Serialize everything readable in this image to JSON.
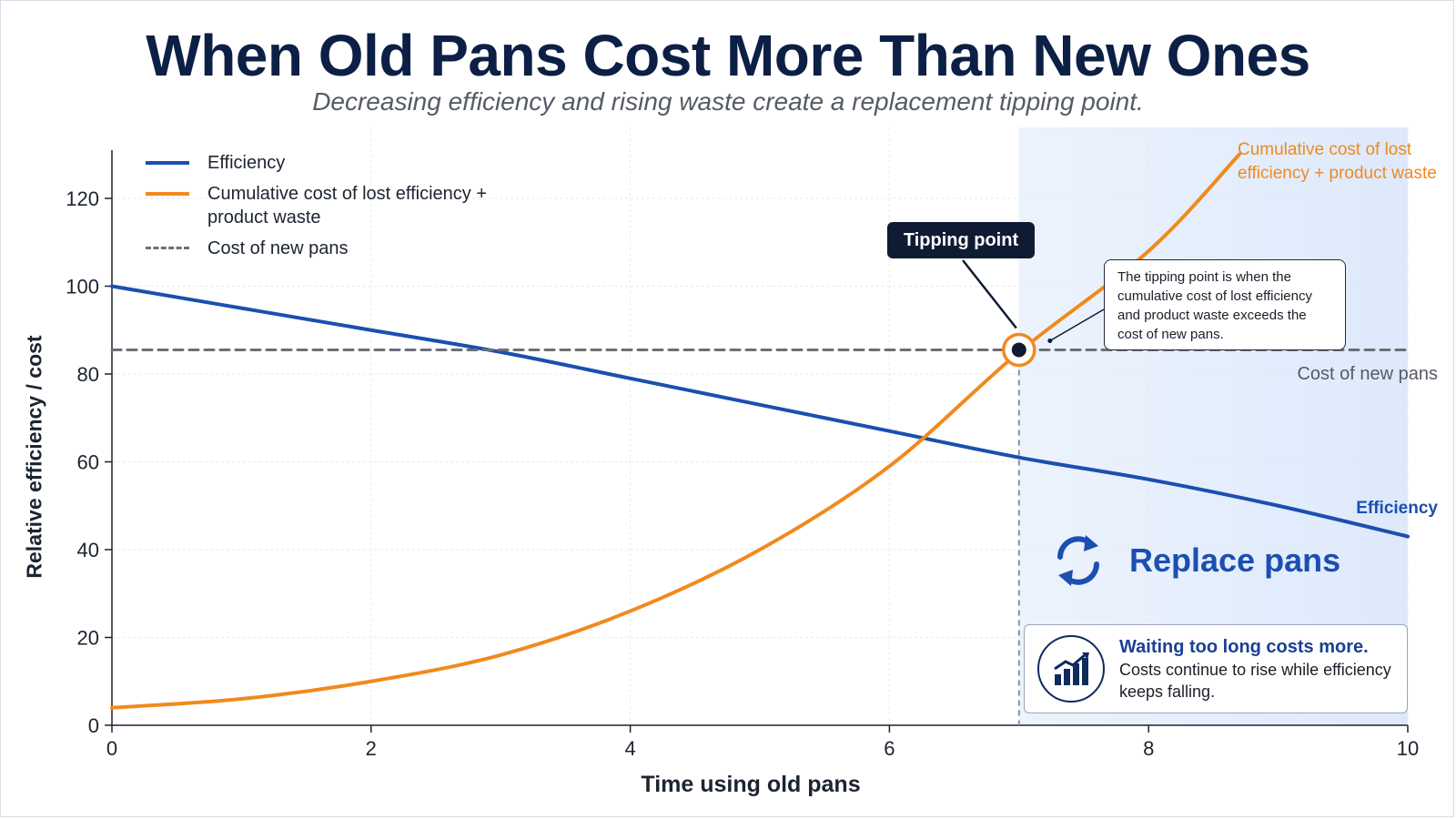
{
  "header": {
    "title": "When Old Pans Cost More Than New Ones",
    "subtitle": "Decreasing efficiency and rising waste create a replacement tipping point."
  },
  "legend": [
    {
      "label": "Efficiency"
    },
    {
      "label": "Cumulative cost of lost efficiency + product waste"
    },
    {
      "label": "Cost of new pans"
    }
  ],
  "annotations": {
    "tipping_point_label": "Tipping point",
    "tipping_point_note": "The tipping point is when the cumulative cost of lost efficiency and product waste exceeds the cost of new pans.",
    "cost_series_label": "Cumulative cost of lost efficiency + product waste",
    "efficiency_series_label": "Efficiency",
    "new_pans_label": "Cost of new pans",
    "replace_label": "Replace pans",
    "callout_heading": "Waiting too long costs more.",
    "callout_text": "Costs continue to rise while efficiency keeps falling."
  },
  "colors": {
    "efficiency": "#1b4fb0",
    "cost": "#f08a1d",
    "new_pans": "#6b6f76",
    "title": "#0c1f45",
    "replace_zone": "#dde9fb"
  },
  "icons": {
    "replace": "refresh-cycle-icon",
    "callout": "rising-bar-chart-icon"
  },
  "chart_data": {
    "type": "line",
    "title": "When Old Pans Cost More Than New Ones",
    "subtitle": "Decreasing efficiency and rising waste create a replacement tipping point.",
    "xlabel": "Time using old pans",
    "ylabel": "Relative efficiency / cost",
    "xlim": [
      0,
      10
    ],
    "ylim": [
      0,
      130
    ],
    "xticks": [
      0,
      2,
      4,
      6,
      8,
      10
    ],
    "yticks": [
      0,
      20,
      40,
      60,
      80,
      100,
      120
    ],
    "grid": true,
    "legend_position": "top-left",
    "x": [
      0,
      1,
      2,
      3,
      4,
      5,
      6,
      7,
      8,
      9,
      10
    ],
    "series": [
      {
        "name": "Efficiency",
        "values": [
          100,
          95,
          90,
          85,
          79,
          73,
          67,
          61,
          56,
          50,
          43
        ]
      },
      {
        "name": "Cumulative cost of lost efficiency + product waste",
        "values": [
          4,
          6,
          10,
          16,
          26,
          40,
          59,
          85,
          108,
          null,
          null
        ]
      },
      {
        "name": "Cost of new pans",
        "values": [
          85.5,
          85.5,
          85.5,
          85.5,
          85.5,
          85.5,
          85.5,
          85.5,
          85.5,
          85.5,
          85.5
        ]
      }
    ],
    "tipping_point": {
      "x": 7,
      "y": 85.5
    },
    "cost_series_end": {
      "x": 8.7,
      "y": 130
    }
  }
}
